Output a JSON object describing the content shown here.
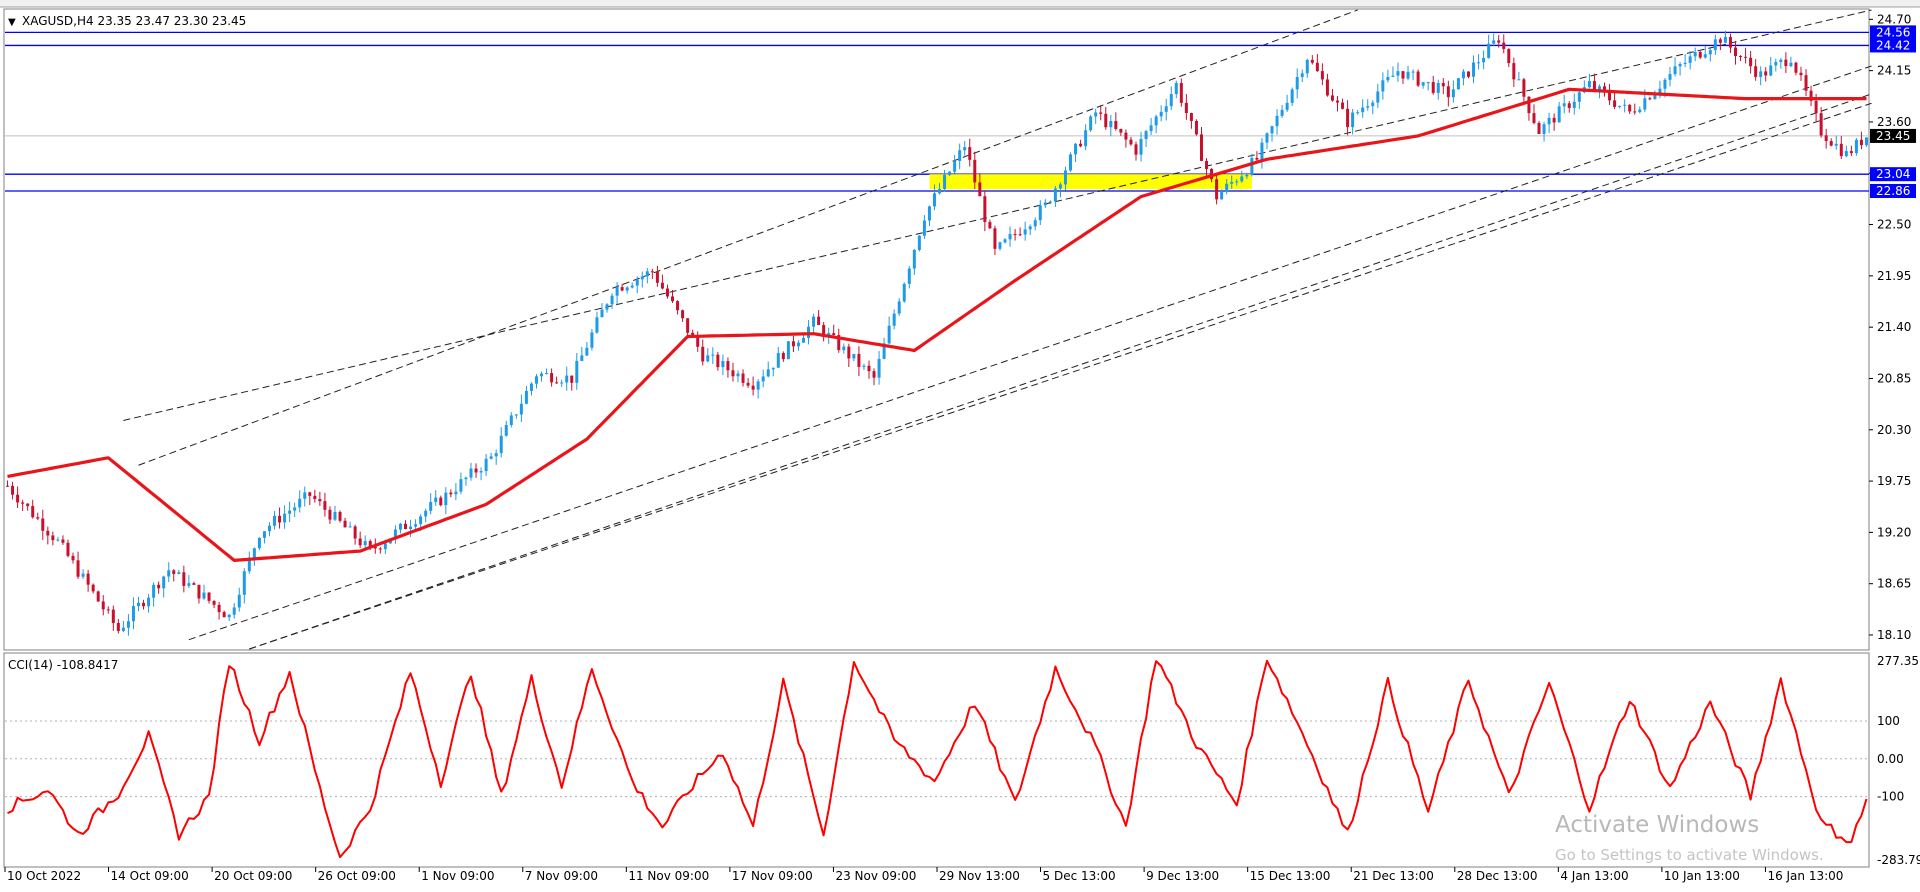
{
  "chart_data": {
    "type": "candlestick",
    "title": "XAGUSD,H4  23.35 23.47 23.30 23.45",
    "price_ticks": [
      "24.70",
      "24.15",
      "23.60",
      "23.05",
      "22.50",
      "21.95",
      "21.40",
      "20.85",
      "20.30",
      "19.75",
      "19.20",
      "18.65",
      "18.10"
    ],
    "price_range": [
      17.95,
      24.8
    ],
    "time_labels": [
      "10 Oct 2022",
      "14 Oct 09:00",
      "20 Oct 09:00",
      "26 Oct 09:00",
      "1 Nov 09:00",
      "7 Nov 09:00",
      "11 Nov 09:00",
      "17 Nov 09:00",
      "23 Nov 09:00",
      "29 Nov 13:00",
      "5 Dec 13:00",
      "9 Dec 13:00",
      "15 Dec 13:00",
      "21 Dec 13:00",
      "28 Dec 13:00",
      "4 Jan 13:00",
      "10 Jan 13:00",
      "16 Jan 13:00"
    ],
    "current_price": "23.45",
    "horizontal_levels": [
      {
        "value": 24.56,
        "label": "24.56"
      },
      {
        "value": 24.42,
        "label": "24.42"
      },
      {
        "value": 23.04,
        "label": "23.04"
      },
      {
        "value": 22.86,
        "label": "22.86"
      }
    ],
    "zone": {
      "low": 22.88,
      "high": 23.04,
      "from_bar": 183,
      "to_bar": 247
    },
    "channel_lines": [
      {
        "bar1": 23,
        "p1": 20.4,
        "bar2": 370,
        "p2": 24.8
      },
      {
        "bar1": 26,
        "p1": 19.92,
        "bar2": 268,
        "p2": 24.8
      },
      {
        "bar1": 36,
        "p1": 18.05,
        "bar2": 370,
        "p2": 24.2
      },
      {
        "bar1": 48,
        "p1": 17.95,
        "bar2": 370,
        "p2": 23.8
      },
      {
        "bar1": 48,
        "p1": 17.95,
        "bar2": 370,
        "p2": 23.9
      }
    ],
    "ma_points": [
      [
        0,
        19.8
      ],
      [
        20,
        20.0
      ],
      [
        45,
        18.9
      ],
      [
        70,
        19.0
      ],
      [
        95,
        19.5
      ],
      [
        115,
        20.2
      ],
      [
        135,
        21.3
      ],
      [
        160,
        21.33
      ],
      [
        180,
        21.15
      ],
      [
        200,
        21.9
      ],
      [
        225,
        22.8
      ],
      [
        250,
        23.2
      ],
      [
        280,
        23.45
      ],
      [
        310,
        23.95
      ],
      [
        345,
        23.85
      ],
      [
        360,
        23.85
      ],
      [
        369,
        23.85
      ]
    ],
    "price_path": [
      [
        0,
        19.7
      ],
      [
        10,
        19.1
      ],
      [
        22,
        18.15
      ],
      [
        32,
        18.8
      ],
      [
        44,
        18.3
      ],
      [
        50,
        19.2
      ],
      [
        60,
        19.6
      ],
      [
        72,
        19.0
      ],
      [
        86,
        19.55
      ],
      [
        96,
        20.0
      ],
      [
        105,
        20.9
      ],
      [
        112,
        20.85
      ],
      [
        120,
        21.8
      ],
      [
        128,
        22.0
      ],
      [
        138,
        21.1
      ],
      [
        148,
        20.8
      ],
      [
        160,
        21.45
      ],
      [
        172,
        20.85
      ],
      [
        182,
        22.6
      ],
      [
        190,
        23.35
      ],
      [
        196,
        22.2
      ],
      [
        206,
        22.7
      ],
      [
        216,
        23.7
      ],
      [
        224,
        23.3
      ],
      [
        232,
        24.0
      ],
      [
        240,
        22.8
      ],
      [
        248,
        23.2
      ],
      [
        258,
        24.3
      ],
      [
        266,
        23.6
      ],
      [
        276,
        24.15
      ],
      [
        286,
        23.9
      ],
      [
        296,
        24.5
      ],
      [
        304,
        23.5
      ],
      [
        314,
        24.0
      ],
      [
        322,
        23.7
      ],
      [
        332,
        24.2
      ],
      [
        340,
        24.5
      ],
      [
        348,
        24.1
      ],
      [
        354,
        24.3
      ],
      [
        360,
        23.5
      ],
      [
        365,
        23.25
      ],
      [
        369,
        23.45
      ]
    ],
    "cci": {
      "label": "CCI(14) -108.8417",
      "value": -108.8417,
      "ticks": [
        "277.357",
        "100",
        "0.00",
        "-100",
        "-283.796"
      ],
      "range": [
        -283.796,
        277.357
      ],
      "levels": [
        100,
        0,
        -100
      ],
      "points": [
        [
          0,
          -130
        ],
        [
          8,
          -80
        ],
        [
          14,
          -200
        ],
        [
          22,
          -90
        ],
        [
          28,
          60
        ],
        [
          34,
          -200
        ],
        [
          40,
          -100
        ],
        [
          44,
          260
        ],
        [
          50,
          50
        ],
        [
          56,
          230
        ],
        [
          62,
          -80
        ],
        [
          66,
          -260
        ],
        [
          72,
          -130
        ],
        [
          80,
          230
        ],
        [
          86,
          -60
        ],
        [
          92,
          230
        ],
        [
          98,
          -100
        ],
        [
          104,
          210
        ],
        [
          110,
          -70
        ],
        [
          116,
          240
        ],
        [
          124,
          -60
        ],
        [
          130,
          -180
        ],
        [
          136,
          -70
        ],
        [
          142,
          20
        ],
        [
          148,
          -180
        ],
        [
          154,
          200
        ],
        [
          162,
          -200
        ],
        [
          168,
          260
        ],
        [
          176,
          50
        ],
        [
          184,
          -60
        ],
        [
          192,
          150
        ],
        [
          200,
          -120
        ],
        [
          208,
          240
        ],
        [
          216,
          30
        ],
        [
          222,
          -180
        ],
        [
          228,
          270
        ],
        [
          236,
          40
        ],
        [
          244,
          -120
        ],
        [
          250,
          270
        ],
        [
          258,
          40
        ],
        [
          266,
          -200
        ],
        [
          274,
          200
        ],
        [
          282,
          -140
        ],
        [
          290,
          210
        ],
        [
          298,
          -100
        ],
        [
          306,
          200
        ],
        [
          314,
          -130
        ],
        [
          322,
          160
        ],
        [
          330,
          -80
        ],
        [
          338,
          150
        ],
        [
          346,
          -100
        ],
        [
          352,
          210
        ],
        [
          360,
          -170
        ],
        [
          366,
          -220
        ],
        [
          369,
          -109
        ]
      ]
    },
    "colors": {
      "bull": "#1e9be8",
      "bear": "#c8102e",
      "ma": "#e8161b",
      "level": "#0000ff",
      "zone": "#ffff00",
      "cci": "#ff0000"
    }
  },
  "watermark": {
    "line1": "Activate Windows",
    "line2": "Go to Settings to activate Windows."
  }
}
